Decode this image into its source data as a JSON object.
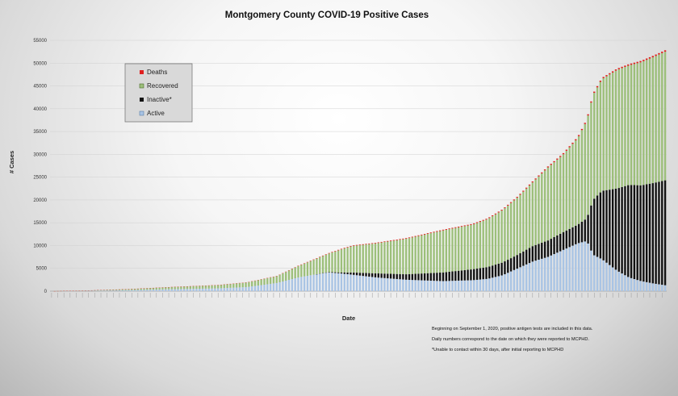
{
  "chart_data": {
    "type": "bar",
    "stacked": true,
    "title": "Montgomery County COVID-19 Positive Cases",
    "xlabel": "Date",
    "ylabel": "# Cases",
    "ylim": [
      0,
      55000
    ],
    "yticks": [
      0,
      5000,
      10000,
      15000,
      20000,
      25000,
      30000,
      35000,
      40000,
      45000,
      50000,
      55000
    ],
    "grid": true,
    "legend_position": "top-left",
    "x_count": 200,
    "series": [
      {
        "name": "Active",
        "color": "#a9c4e4",
        "knots": [
          [
            0,
            0
          ],
          [
            10,
            60
          ],
          [
            25,
            200
          ],
          [
            40,
            420
          ],
          [
            55,
            600
          ],
          [
            65,
            900
          ],
          [
            75,
            1800
          ],
          [
            82,
            3000
          ],
          [
            88,
            3700
          ],
          [
            92,
            4100
          ],
          [
            96,
            3900
          ],
          [
            100,
            3600
          ],
          [
            108,
            3000
          ],
          [
            118,
            2500
          ],
          [
            130,
            2200
          ],
          [
            140,
            2400
          ],
          [
            145,
            2700
          ],
          [
            150,
            3500
          ],
          [
            155,
            5000
          ],
          [
            160,
            6500
          ],
          [
            165,
            7500
          ],
          [
            170,
            9000
          ],
          [
            175,
            10500
          ],
          [
            178,
            11000
          ],
          [
            180,
            8000
          ],
          [
            183,
            7000
          ],
          [
            188,
            4500
          ],
          [
            192,
            3000
          ],
          [
            196,
            2200
          ],
          [
            200,
            1700
          ],
          [
            204,
            1300
          ]
        ]
      },
      {
        "name": "Inactive*",
        "color": "#111111",
        "knots": [
          [
            0,
            0
          ],
          [
            88,
            0
          ],
          [
            92,
            100
          ],
          [
            96,
            200
          ],
          [
            100,
            500
          ],
          [
            108,
            900
          ],
          [
            118,
            1200
          ],
          [
            130,
            1900
          ],
          [
            140,
            2400
          ],
          [
            145,
            2600
          ],
          [
            150,
            2800
          ],
          [
            155,
            3000
          ],
          [
            160,
            3400
          ],
          [
            165,
            3600
          ],
          [
            170,
            3900
          ],
          [
            175,
            4100
          ],
          [
            178,
            5000
          ],
          [
            180,
            12000
          ],
          [
            183,
            15000
          ],
          [
            188,
            18000
          ],
          [
            192,
            20300
          ],
          [
            196,
            21000
          ],
          [
            200,
            22000
          ],
          [
            204,
            23000
          ]
        ]
      },
      {
        "name": "Recovered",
        "color": "#9cbf7a",
        "knots": [
          [
            0,
            0
          ],
          [
            10,
            50
          ],
          [
            25,
            220
          ],
          [
            40,
            480
          ],
          [
            55,
            700
          ],
          [
            65,
            1000
          ],
          [
            75,
            1500
          ],
          [
            82,
            2500
          ],
          [
            88,
            3400
          ],
          [
            92,
            4000
          ],
          [
            96,
            5000
          ],
          [
            100,
            5800
          ],
          [
            108,
            6600
          ],
          [
            118,
            7800
          ],
          [
            130,
            9200
          ],
          [
            140,
            9800
          ],
          [
            145,
            10500
          ],
          [
            150,
            11500
          ],
          [
            155,
            12600
          ],
          [
            160,
            14000
          ],
          [
            165,
            16000
          ],
          [
            170,
            17000
          ],
          [
            175,
            19000
          ],
          [
            178,
            21500
          ],
          [
            180,
            23000
          ],
          [
            183,
            24500
          ],
          [
            188,
            26000
          ],
          [
            192,
            26200
          ],
          [
            196,
            27000
          ],
          [
            200,
            27600
          ],
          [
            204,
            28200
          ]
        ]
      },
      {
        "name": "Deaths",
        "color": "#e02020",
        "knots": [
          [
            0,
            0
          ],
          [
            40,
            20
          ],
          [
            75,
            60
          ],
          [
            100,
            120
          ],
          [
            150,
            180
          ],
          [
            175,
            250
          ],
          [
            204,
            320
          ]
        ]
      }
    ]
  },
  "notes": [
    "Beginning on September 1, 2020, positive antigen tests are included in this data.",
    "Daily numbers correspond to the date on which they were reported to MCPHD.",
    "*Unable to contact within 30 days, after initial reporting to MCPHD"
  ]
}
